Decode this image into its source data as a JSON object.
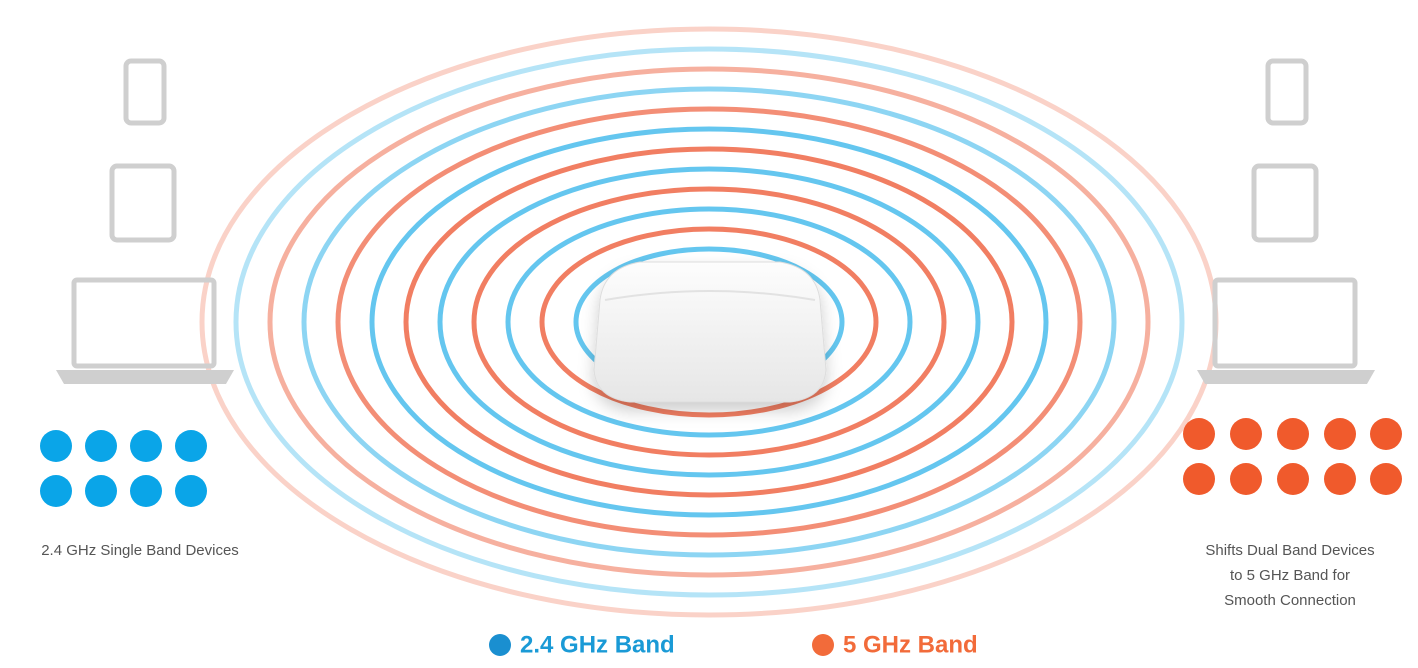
{
  "left_label": "2.4 GHz Single Band Devices",
  "right_label": [
    "Shifts Dual Band Devices",
    "to 5 GHz Band for",
    "Smooth Connection"
  ],
  "legend": [
    "2.4 GHz Band",
    "5 GHz Band"
  ]
}
